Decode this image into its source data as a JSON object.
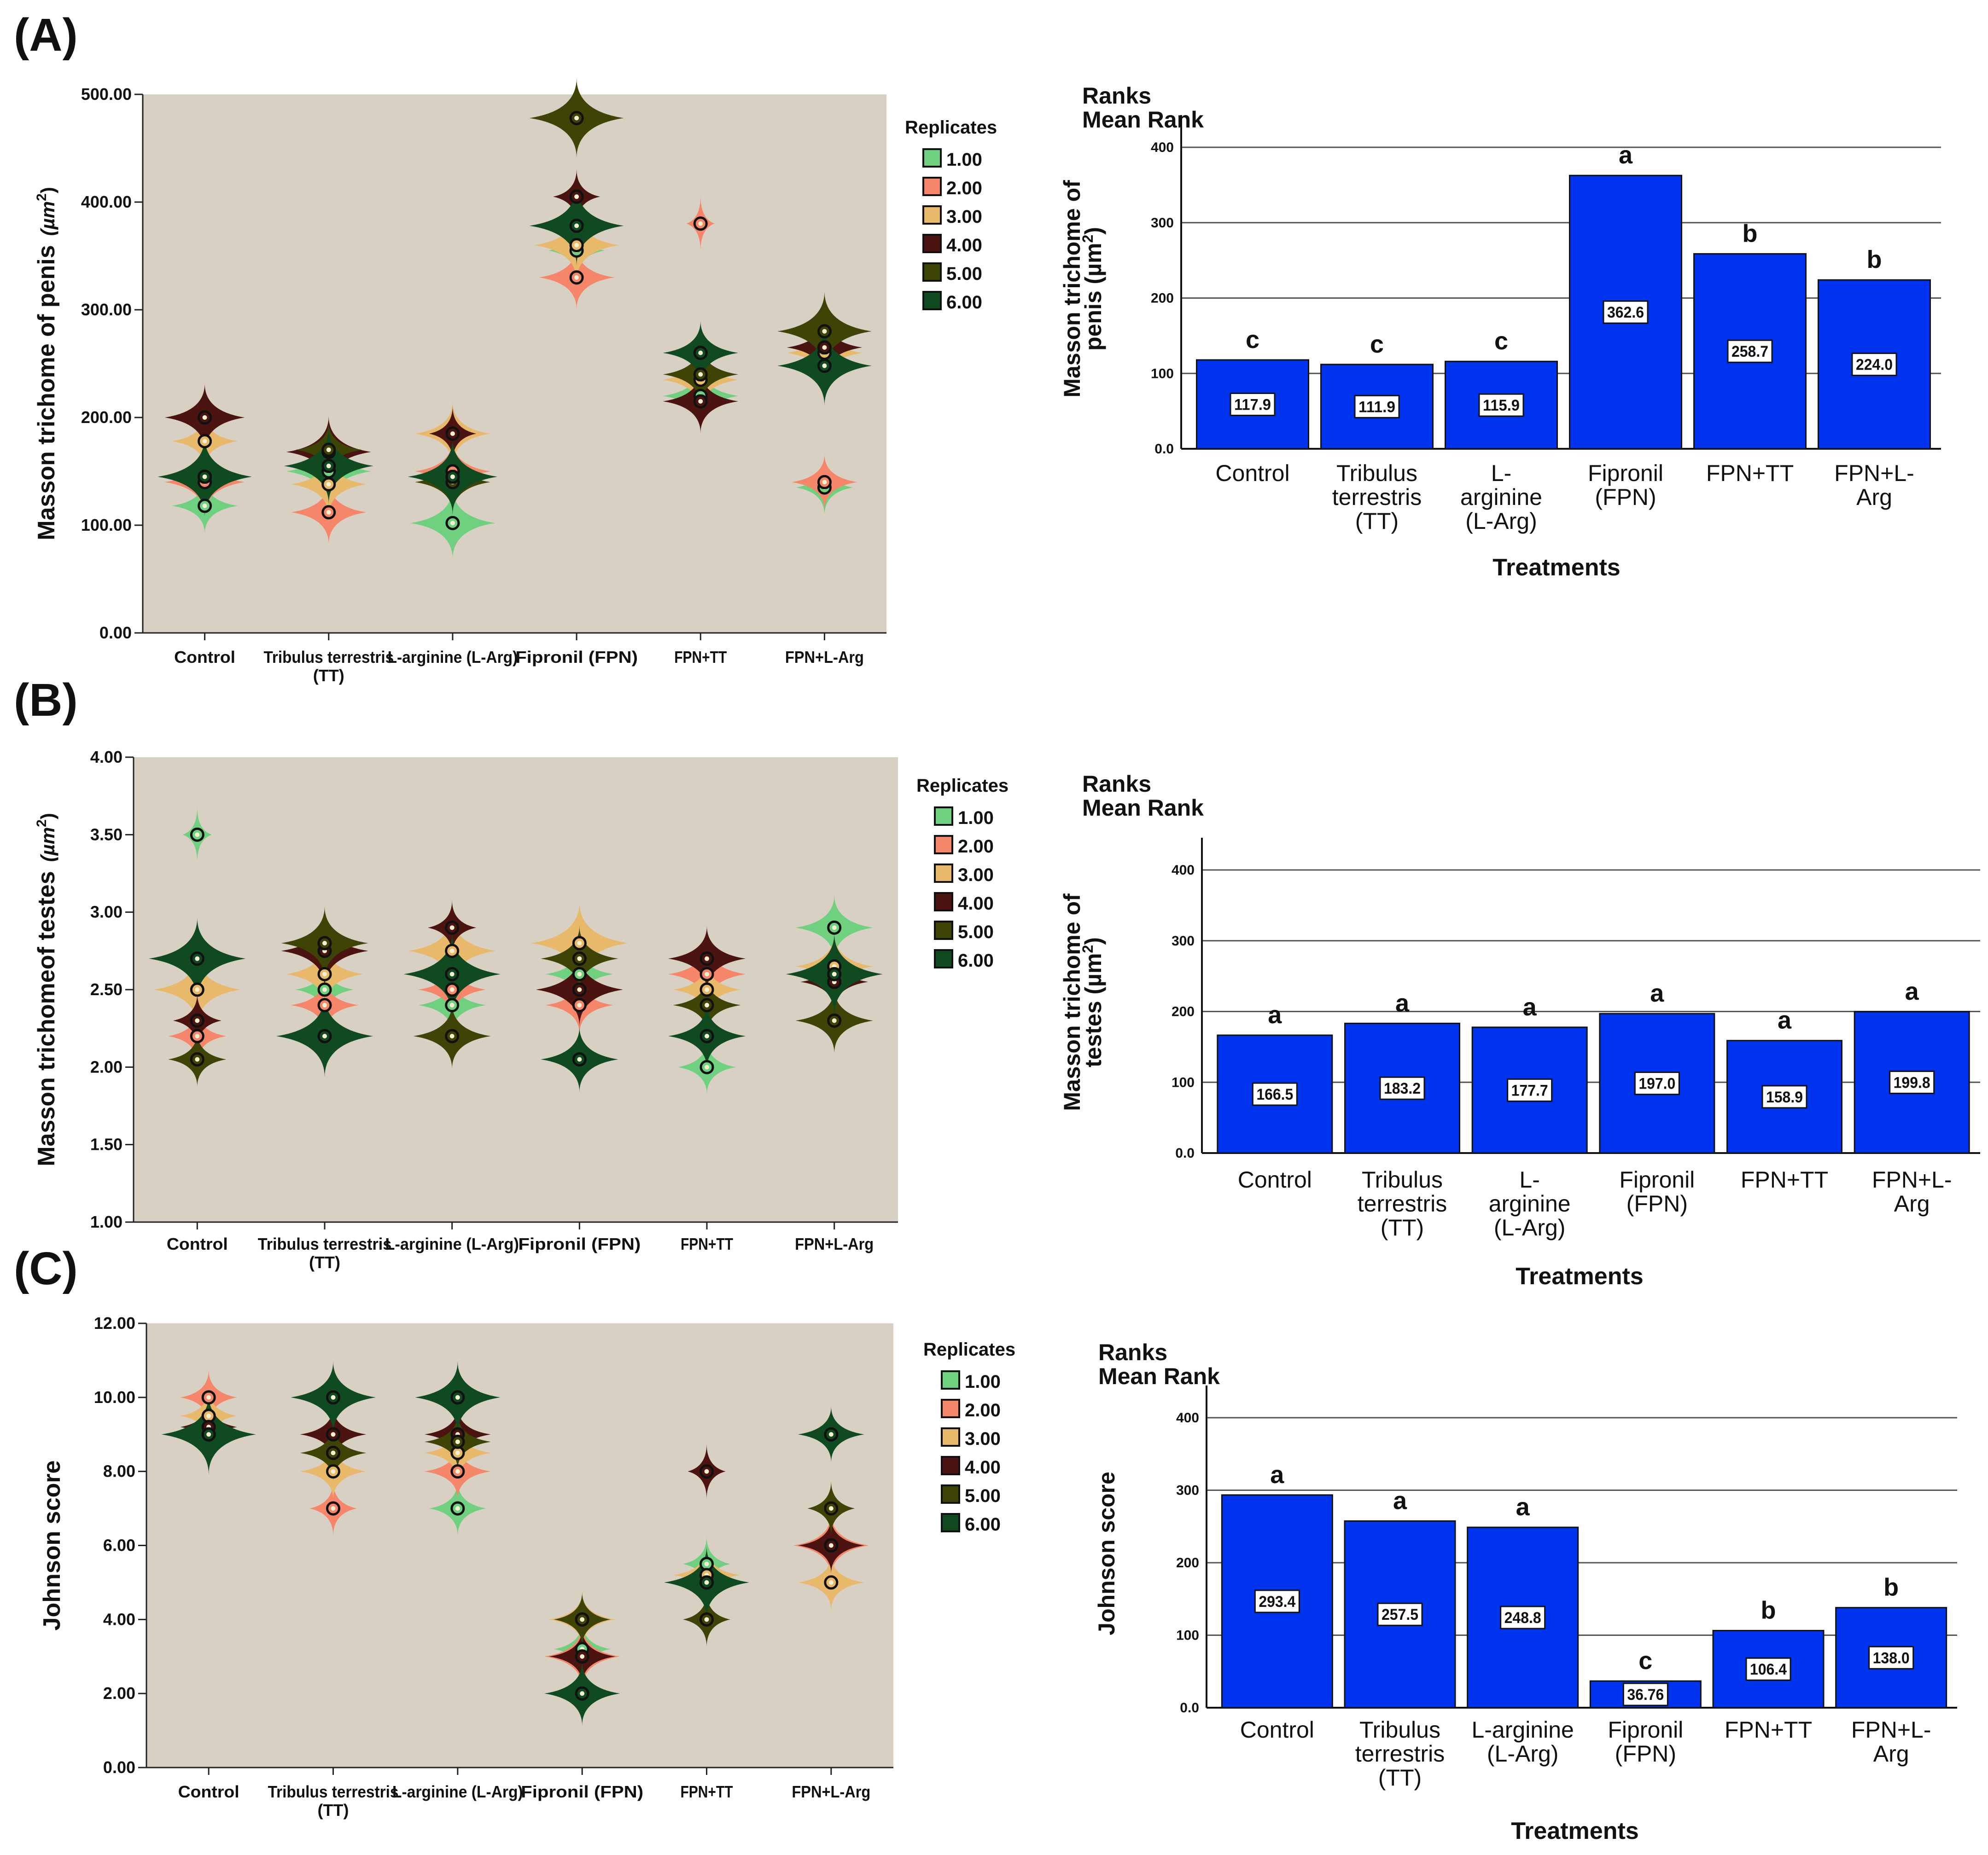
{
  "colors": {
    "plot_bg": "#d8d0c3",
    "bar_fill": "#0033ee",
    "grid": "#555555",
    "replicates": [
      "#6fd17f",
      "#f6866a",
      "#e8b96b",
      "#4b1410",
      "#3d4406",
      "#0f4a20"
    ]
  },
  "chart_data": [
    {
      "panel": "(A)",
      "type": "violin",
      "ylabel_main": "Masson trichome of penis",
      "ylabel_unit": "(µm",
      "ylabel_sup": "2",
      "ylabel_close": ")",
      "ylim": [
        0,
        500
      ],
      "yticks": [
        "0.00",
        "100.00",
        "200.00",
        "300.00",
        "400.00",
        "500.00"
      ],
      "categories": [
        "Control",
        "Tribulus terrestris",
        "L-arginine (L-Arg)",
        "Fipronil (FPN)",
        "FPN+TT",
        "FPN+L-Arg"
      ],
      "category_sub": [
        "",
        "(TT)",
        "",
        "",
        "",
        ""
      ],
      "legend_title": "Replicates",
      "legend": [
        "1.00",
        "2.00",
        "3.00",
        "4.00",
        "5.00",
        "6.00"
      ],
      "groups": [
        [
          [
            118,
            0.7
          ],
          [
            140,
            0.85
          ],
          [
            178,
            0.7
          ],
          [
            200,
            0.85
          ],
          [
            145,
            0.8
          ],
          [
            145,
            1.0
          ]
        ],
        [
          [
            150,
            0.9
          ],
          [
            112,
            0.8
          ],
          [
            138,
            0.8
          ],
          [
            168,
            0.9
          ],
          [
            170,
            0.7
          ],
          [
            155,
            0.95
          ]
        ],
        [
          [
            102,
            0.9
          ],
          [
            150,
            0.8
          ],
          [
            185,
            0.8
          ],
          [
            185,
            0.5
          ],
          [
            140,
            0.8
          ],
          [
            145,
            0.95
          ]
        ],
        [
          [
            355,
            0.6
          ],
          [
            330,
            0.8
          ],
          [
            360,
            0.9
          ],
          [
            405,
            0.5
          ],
          [
            478,
            1.0
          ],
          [
            378,
            1.0
          ]
        ],
        [
          [
            220,
            0.8
          ],
          [
            380,
            0.3
          ],
          [
            235,
            0.8
          ],
          [
            215,
            0.8
          ],
          [
            240,
            0.8
          ],
          [
            260,
            0.8
          ]
        ],
        [
          [
            135,
            0.6
          ],
          [
            140,
            0.7
          ],
          [
            260,
            0.8
          ],
          [
            265,
            0.8
          ],
          [
            280,
            1.0
          ],
          [
            248,
            1.0
          ]
        ]
      ]
    },
    {
      "panel": "(A)",
      "type": "bar",
      "title_line1": "Ranks",
      "title_line2": "Mean Rank",
      "ylabel_line1": "Masson trichome of",
      "ylabel_line2": "penis (µm",
      "ylabel_sup": "2",
      "ylabel_close": ")",
      "xlabel": "Treatments",
      "ylim": [
        0,
        400
      ],
      "yticks": [
        "0.0",
        "100",
        "200",
        "300",
        "400"
      ],
      "categories": [
        [
          "Control"
        ],
        [
          "Tribulus",
          "terrestris",
          "(TT)"
        ],
        [
          "L-",
          "arginine",
          "(L-Arg)"
        ],
        [
          "Fipronil",
          "(FPN)"
        ],
        [
          "FPN+TT"
        ],
        [
          "FPN+L-",
          "Arg"
        ]
      ],
      "values": [
        117.9,
        111.9,
        115.9,
        362.6,
        258.7,
        224.0
      ],
      "value_labels": [
        "117.9",
        "111.9",
        "115.9",
        "362.6",
        "258.7",
        "224.0"
      ],
      "significance": [
        "c",
        "c",
        "c",
        "a",
        "b",
        "b"
      ]
    },
    {
      "panel": "(B)",
      "type": "violin",
      "ylabel_main": "Masson trichomeof testes",
      "ylabel_unit": "(µm",
      "ylabel_sup": "2",
      "ylabel_close": ")",
      "ylim": [
        1,
        4
      ],
      "yticks": [
        "1.00",
        "1.50",
        "2.00",
        "2.50",
        "3.00",
        "3.50",
        "4.00"
      ],
      "categories": [
        "Control",
        "Tribulus terrestris",
        "L-arginine (L-Arg)",
        "Fipronil (FPN)",
        "FPN+TT",
        "FPN+L-Arg"
      ],
      "category_sub": [
        "",
        "(TT)",
        "",
        "",
        "",
        ""
      ],
      "legend_title": "Replicates",
      "legend": [
        "1.00",
        "2.00",
        "3.00",
        "4.00",
        "5.00",
        "6.00"
      ],
      "groups": [
        [
          [
            3.5,
            0.3
          ],
          [
            2.2,
            0.6
          ],
          [
            2.5,
            0.9
          ],
          [
            2.3,
            0.5
          ],
          [
            2.05,
            0.6
          ],
          [
            2.7,
            1.0
          ]
        ],
        [
          [
            2.5,
            0.6
          ],
          [
            2.4,
            0.7
          ],
          [
            2.6,
            0.8
          ],
          [
            2.75,
            0.9
          ],
          [
            2.8,
            0.9
          ],
          [
            2.2,
            1.0
          ]
        ],
        [
          [
            2.4,
            0.7
          ],
          [
            2.5,
            0.7
          ],
          [
            2.75,
            0.9
          ],
          [
            2.9,
            0.5
          ],
          [
            2.2,
            0.8
          ],
          [
            2.6,
            1.0
          ]
        ],
        [
          [
            2.6,
            0.7
          ],
          [
            2.4,
            0.7
          ],
          [
            2.8,
            1.0
          ],
          [
            2.5,
            0.9
          ],
          [
            2.7,
            0.8
          ],
          [
            2.05,
            0.8
          ]
        ],
        [
          [
            2.0,
            0.6
          ],
          [
            2.6,
            0.8
          ],
          [
            2.5,
            0.7
          ],
          [
            2.7,
            0.8
          ],
          [
            2.4,
            0.7
          ],
          [
            2.2,
            0.8
          ]
        ],
        [
          [
            2.9,
            0.8
          ],
          [
            2.3,
            0.7
          ],
          [
            2.65,
            0.8
          ],
          [
            2.55,
            0.7
          ],
          [
            2.3,
            0.8
          ],
          [
            2.6,
            1.0
          ]
        ]
      ]
    },
    {
      "panel": "(B)",
      "type": "bar",
      "title_line1": "Ranks",
      "title_line2": "Mean Rank",
      "ylabel_line1": "Masson trichome of",
      "ylabel_line2": "testes (µm",
      "ylabel_sup": "2",
      "ylabel_close": ")",
      "xlabel": "Treatments",
      "ylim": [
        0,
        400
      ],
      "yticks": [
        "0.0",
        "100",
        "200",
        "300",
        "400"
      ],
      "categories": [
        [
          "Control"
        ],
        [
          "Tribulus",
          "terrestris",
          "(TT)"
        ],
        [
          "L-",
          "arginine",
          "(L-Arg)"
        ],
        [
          "Fipronil",
          "(FPN)"
        ],
        [
          "FPN+TT"
        ],
        [
          "FPN+L-",
          "Arg"
        ]
      ],
      "values": [
        166.5,
        183.2,
        177.7,
        197.0,
        158.9,
        199.8
      ],
      "value_labels": [
        "166.5",
        "183.2",
        "177.7",
        "197.0",
        "158.9",
        "199.8"
      ],
      "significance": [
        "a",
        "a",
        "a",
        "a",
        "a",
        "a"
      ]
    },
    {
      "panel": "(C)",
      "type": "violin",
      "ylabel_main": "Johnson score",
      "ylabel_unit": "",
      "ylabel_sup": "",
      "ylabel_close": "",
      "ylim": [
        0,
        12
      ],
      "yticks": [
        "0.00",
        "2.00",
        "4.00",
        "6.00",
        "8.00",
        "10.00",
        "12.00"
      ],
      "categories": [
        "Control",
        "Tribulus terrestris",
        "L-arginine (L-Arg)",
        "Fipronil (FPN)",
        "FPN+TT",
        "FPN+L-Arg"
      ],
      "category_sub": [
        "",
        "(TT)",
        "",
        "",
        "",
        ""
      ],
      "legend_title": "Replicates",
      "legend": [
        "1.00",
        "2.00",
        "3.00",
        "4.00",
        "5.00",
        "6.00"
      ],
      "groups": [
        [
          [
            9.0,
            0.8
          ],
          [
            10.0,
            0.6
          ],
          [
            9.5,
            0.6
          ],
          [
            9.2,
            0.6
          ],
          [
            9.0,
            0.9
          ],
          [
            9.0,
            1.0
          ]
        ],
        [
          [
            8.5,
            0.6
          ],
          [
            7.0,
            0.5
          ],
          [
            8.0,
            0.7
          ],
          [
            9.0,
            0.7
          ],
          [
            8.5,
            0.7
          ],
          [
            10.0,
            0.9
          ]
        ],
        [
          [
            7.0,
            0.6
          ],
          [
            8.0,
            0.7
          ],
          [
            8.5,
            0.7
          ],
          [
            9.0,
            0.7
          ],
          [
            8.8,
            0.7
          ],
          [
            10.0,
            0.9
          ]
        ],
        [
          [
            3.2,
            0.6
          ],
          [
            3.0,
            0.8
          ],
          [
            4.0,
            0.7
          ],
          [
            3.0,
            0.7
          ],
          [
            4.0,
            0.6
          ],
          [
            2.0,
            0.8
          ]
        ],
        [
          [
            5.5,
            0.5
          ],
          [
            5.0,
            0.6
          ],
          [
            5.2,
            0.7
          ],
          [
            8.0,
            0.4
          ],
          [
            4.0,
            0.5
          ],
          [
            5.0,
            0.9
          ]
        ],
        [
          [
            6.0,
            0.6
          ],
          [
            6.0,
            0.8
          ],
          [
            5.0,
            0.7
          ],
          [
            6.0,
            0.7
          ],
          [
            7.0,
            0.5
          ],
          [
            9.0,
            0.7
          ]
        ]
      ]
    },
    {
      "panel": "(C)",
      "type": "bar",
      "title_line1": "Ranks",
      "title_line2": "Mean Rank",
      "ylabel_line1": "Johnson score",
      "ylabel_line2": "",
      "ylabel_sup": "",
      "ylabel_close": "",
      "xlabel": "Treatments",
      "ylim": [
        0,
        400
      ],
      "yticks": [
        "0.0",
        "100",
        "200",
        "300",
        "400"
      ],
      "categories": [
        [
          "Control"
        ],
        [
          "Tribulus",
          "terrestris",
          "(TT)"
        ],
        [
          "L-arginine",
          "(L-Arg)"
        ],
        [
          "Fipronil",
          "(FPN)"
        ],
        [
          "FPN+TT"
        ],
        [
          "FPN+L-",
          "Arg"
        ]
      ],
      "values": [
        293.4,
        257.5,
        248.8,
        36.76,
        106.4,
        138.0
      ],
      "value_labels": [
        "293.4",
        "257.5",
        "248.8",
        "36.76",
        "106.4",
        "138.0"
      ],
      "significance": [
        "a",
        "a",
        "a",
        "c",
        "b",
        "b"
      ]
    }
  ]
}
